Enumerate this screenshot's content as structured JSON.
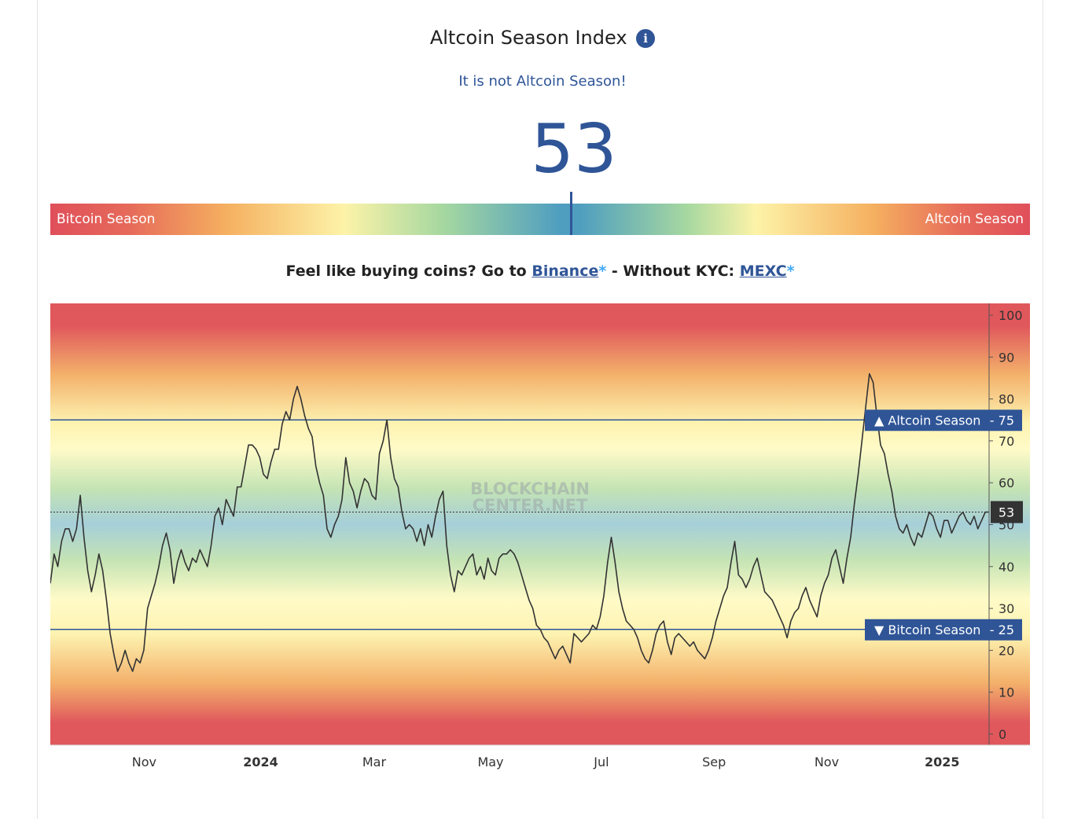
{
  "header": {
    "title": "Altcoin Season Index",
    "info_icon": "i",
    "status": "It is not Altcoin Season!",
    "value": "53"
  },
  "gauge": {
    "left_label": "Bitcoin Season",
    "right_label": "Altcoin Season",
    "value": 53
  },
  "promo": {
    "text_before": "Feel like buying coins? Go to ",
    "link1": "Binance",
    "star": "*",
    "text_middle": " - Without KYC: ",
    "link2": "MEXC"
  },
  "watermark": [
    "BLOCKCHAIN",
    "CENTER.NET"
  ],
  "colors": {
    "accent": "#2f5597",
    "red": "#e04f5a",
    "line": "#333333"
  },
  "chart_data": {
    "type": "line",
    "ylim": [
      0,
      100
    ],
    "yticks": [
      0,
      10,
      20,
      30,
      40,
      50,
      60,
      70,
      80,
      90,
      100
    ],
    "xticks": [
      {
        "label": "Nov",
        "pos": 0.1,
        "bold": false
      },
      {
        "label": "2024",
        "pos": 0.224,
        "bold": true
      },
      {
        "label": "Mar",
        "pos": 0.345,
        "bold": false
      },
      {
        "label": "May",
        "pos": 0.469,
        "bold": false
      },
      {
        "label": "Jul",
        "pos": 0.587,
        "bold": false
      },
      {
        "label": "Sep",
        "pos": 0.707,
        "bold": false
      },
      {
        "label": "Nov",
        "pos": 0.827,
        "bold": false
      },
      {
        "label": "2025",
        "pos": 0.95,
        "bold": true
      }
    ],
    "thresholds": [
      {
        "label": "▲ Altcoin Season",
        "value": 75
      },
      {
        "label": "▼ Bitcoin Season",
        "value": 25
      }
    ],
    "current": 53,
    "values": [
      36,
      43,
      40,
      46,
      49,
      49,
      46,
      49,
      57,
      47,
      39,
      34,
      38,
      43,
      39,
      32,
      24,
      19,
      15,
      17,
      20,
      17,
      15,
      18,
      17,
      20,
      30,
      33,
      36,
      40,
      45,
      48,
      44,
      36,
      41,
      44,
      41,
      39,
      42,
      41,
      44,
      42,
      40,
      45,
      52,
      54,
      50,
      56,
      54,
      52,
      59,
      59,
      64,
      69,
      69,
      68,
      66,
      62,
      61,
      65,
      68,
      68,
      74,
      77,
      75,
      80,
      83,
      80,
      76,
      73,
      71,
      64,
      60,
      57,
      49,
      47,
      50,
      52,
      56,
      66,
      60,
      58,
      54,
      58,
      61,
      60,
      57,
      56,
      67,
      70,
      75,
      66,
      61,
      59,
      53,
      49,
      50,
      49,
      46,
      49,
      45,
      50,
      47,
      52,
      56,
      58,
      45,
      38,
      34,
      39,
      38,
      40,
      42,
      43,
      38,
      40,
      37,
      42,
      39,
      38,
      42,
      43,
      43,
      44,
      43,
      41,
      38,
      35,
      32,
      30,
      26,
      25,
      23,
      22,
      20,
      18,
      20,
      21,
      19,
      17,
      24,
      23,
      22,
      23,
      24,
      26,
      25,
      28,
      33,
      41,
      47,
      41,
      34,
      30,
      27,
      26,
      25,
      23,
      20,
      18,
      17,
      20,
      24,
      26,
      27,
      22,
      19,
      23,
      24,
      23,
      22,
      21,
      22,
      20,
      19,
      18,
      20,
      23,
      27,
      30,
      33,
      35,
      41,
      46,
      38,
      37,
      35,
      37,
      40,
      42,
      38,
      34,
      33,
      32,
      30,
      28,
      26,
      23,
      27,
      29,
      30,
      33,
      35,
      32,
      30,
      28,
      33,
      36,
      38,
      42,
      44,
      40,
      36,
      42,
      47,
      55,
      62,
      70,
      78,
      86,
      84,
      76,
      69,
      67,
      62,
      58,
      52,
      49,
      48,
      50,
      47,
      45,
      48,
      47,
      50,
      53,
      52,
      49,
      47,
      51,
      51,
      48,
      50,
      52,
      53,
      51,
      50,
      52,
      49,
      51,
      53,
      53
    ]
  }
}
